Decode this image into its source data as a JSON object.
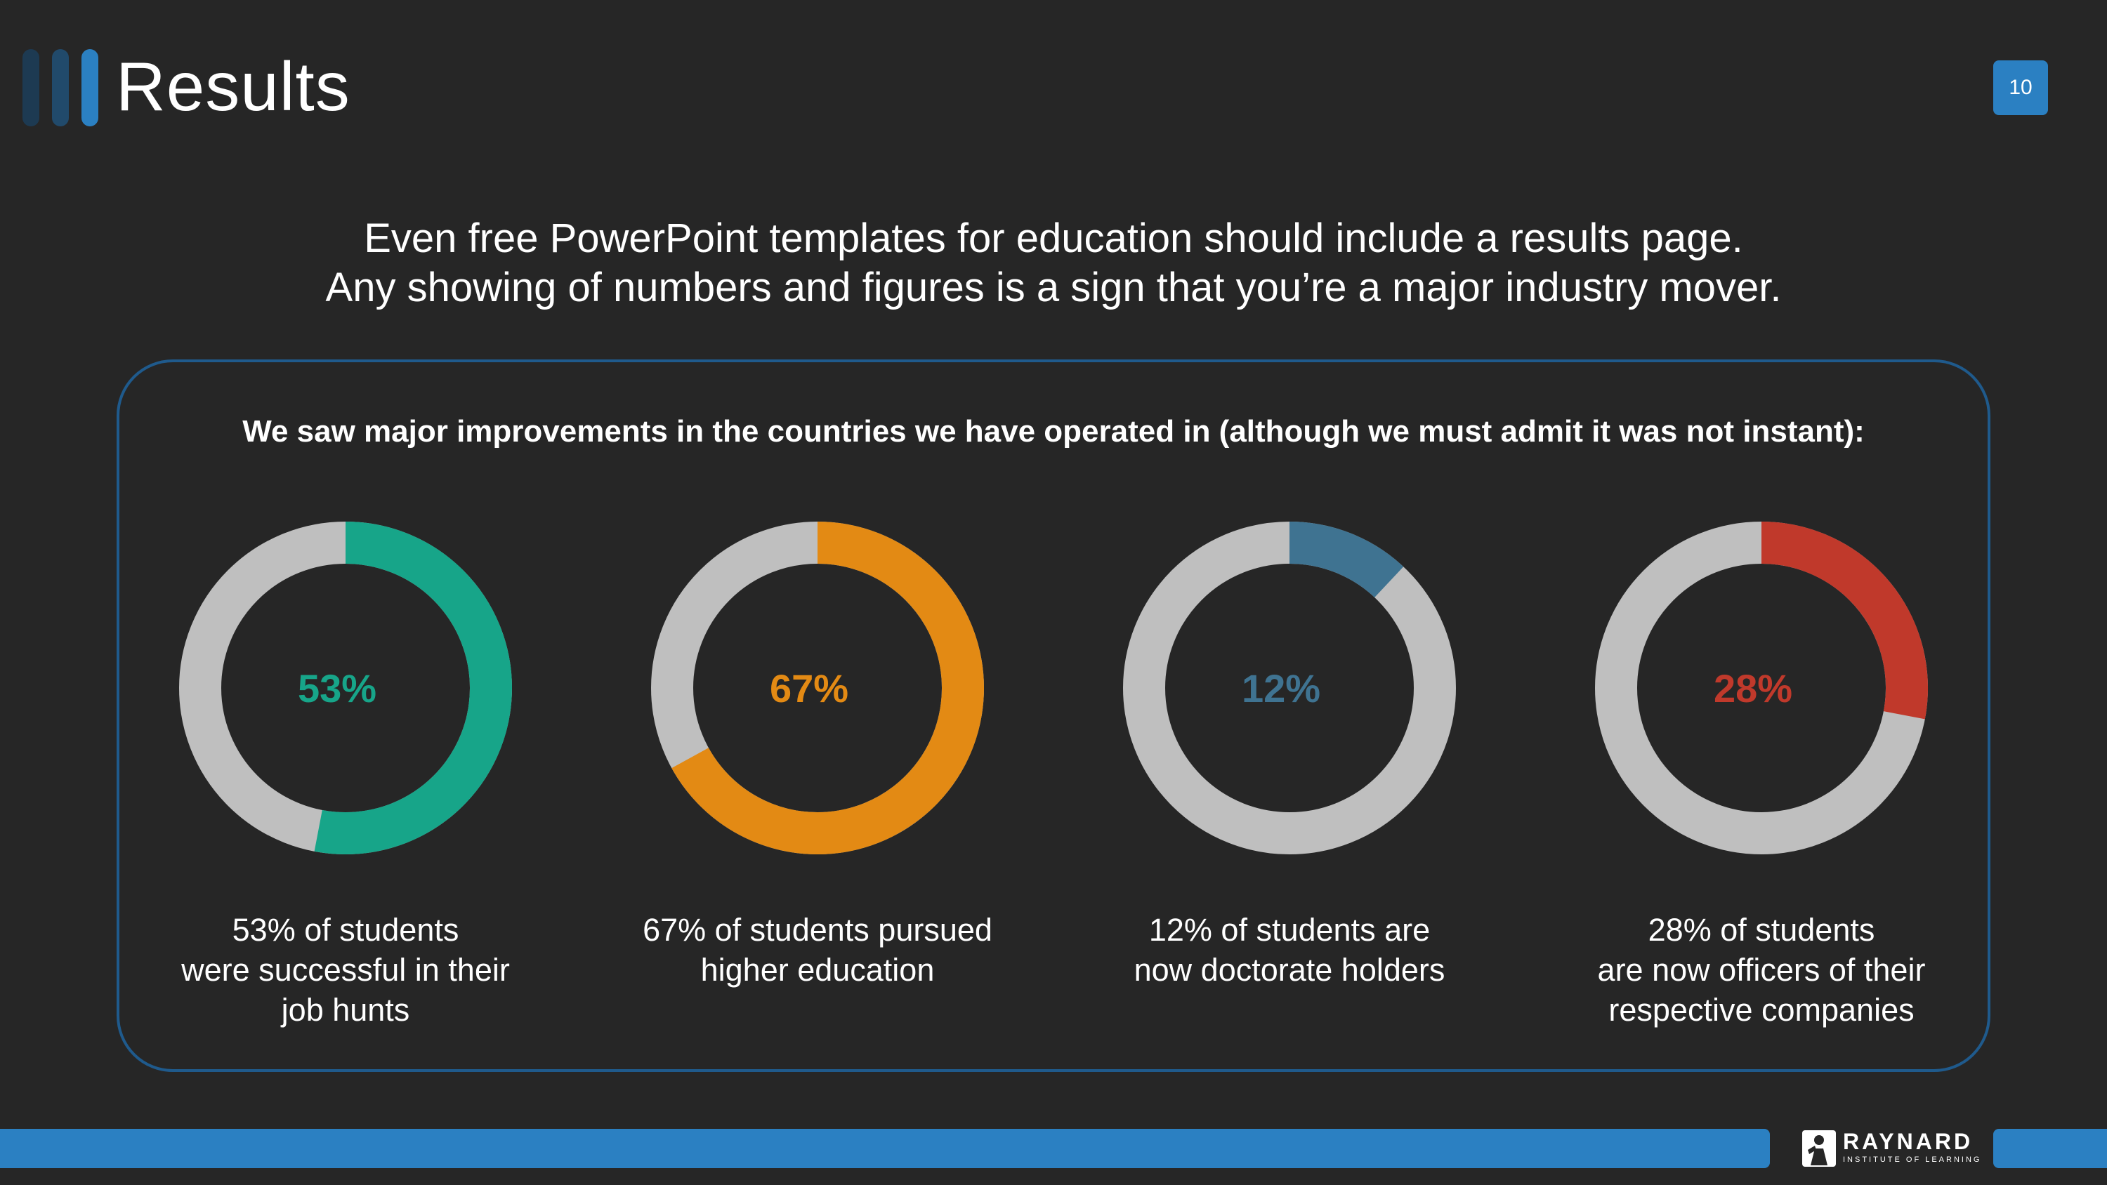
{
  "slide": {
    "title": "Results",
    "page_number": "10",
    "intro_lines": [
      "Even free PowerPoint templates for education should include a results page.",
      "Any showing of numbers and figures is a sign that you’re a major industry mover."
    ],
    "panel_heading": "We saw major improvements in the countries we have operated in (although we must admit it was not instant):",
    "logo": {
      "name": "RAYNARD",
      "subtitle": "INSTITUTE OF LEARNING"
    }
  },
  "colors": {
    "background": "#262626",
    "accent_blue": "#2b80c2",
    "ring_track": "#bfbfbf",
    "teal": "#17a589",
    "orange": "#e38a14",
    "steel_blue": "#3f7391",
    "red": "#c0392b"
  },
  "chart_data": [
    {
      "type": "pie",
      "variant": "donut",
      "label": "53%",
      "value": 53,
      "max": 100,
      "color": "#17a589",
      "caption": [
        "53% of students",
        "were successful in their",
        "job hunts"
      ]
    },
    {
      "type": "pie",
      "variant": "donut",
      "label": "67%",
      "value": 67,
      "max": 100,
      "color": "#e38a14",
      "caption": [
        "67% of students pursued",
        "higher education"
      ]
    },
    {
      "type": "pie",
      "variant": "donut",
      "label": "12%",
      "value": 12,
      "max": 100,
      "color": "#3f7391",
      "caption": [
        "12% of students are",
        "now doctorate holders"
      ]
    },
    {
      "type": "pie",
      "variant": "donut",
      "label": "28%",
      "value": 28,
      "max": 100,
      "color": "#c0392b",
      "caption": [
        "28% of students",
        "are now officers of their",
        "respective companies"
      ]
    }
  ]
}
